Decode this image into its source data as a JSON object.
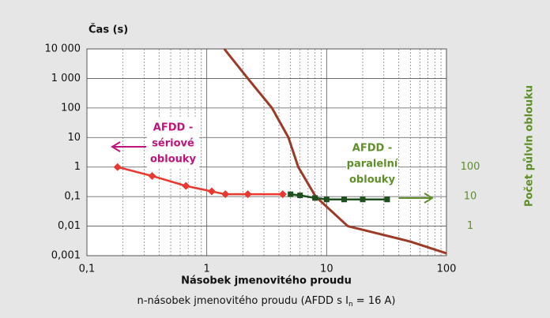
{
  "chart_data": {
    "type": "line",
    "y_title": "Čas (s)",
    "x_title": "Násobek jmenovitého proudu",
    "note": [
      "n-násobek jmenovitého proudu (AFDD s I",
      "n",
      " = 16 A)"
    ],
    "y2_title": "Počet půlvln oblouku",
    "annotations": [
      {
        "lines": [
          "AFDD -",
          "sériové",
          "oblouky"
        ],
        "color": "#c0137a"
      },
      {
        "lines": [
          "AFDD -",
          "paralelní",
          "oblouky"
        ],
        "color": "#5e8f2a"
      }
    ],
    "log_x": true,
    "log_y": true,
    "grid": true,
    "xlim": [
      0.1,
      100
    ],
    "xticks": [
      {
        "value": 0.1,
        "label": "0,1"
      },
      1,
      10,
      100
    ],
    "ylim": [
      0.001,
      10000
    ],
    "yticks": [
      {
        "value": 10000,
        "label": "10 000"
      },
      {
        "value": 1000,
        "label": "1 000"
      },
      100,
      10,
      1,
      {
        "value": 0.1,
        "label": "0,1"
      },
      {
        "value": 0.01,
        "label": "0,01"
      },
      {
        "value": 0.001,
        "label": "0,001"
      }
    ],
    "y2lim": [
      0.1,
      1000000
    ],
    "y2ticks": [
      100,
      10,
      1
    ],
    "series": [
      {
        "color": "#9b3a26",
        "marker": "none",
        "x": [
          1.4,
          2.2,
          3.5,
          4.8,
          5.8,
          8.1,
          15,
          50,
          100
        ],
        "values": [
          10000,
          1000,
          100,
          10,
          1,
          0.1,
          0.01,
          0.003,
          0.0012
        ]
      },
      {
        "color": "#e8382f",
        "marker": "diamond",
        "x": [
          0.18,
          0.35,
          0.67,
          1.1,
          1.43,
          2.2,
          4.3
        ],
        "values": [
          1,
          0.5,
          0.23,
          0.15,
          0.12,
          0.12,
          0.12
        ]
      },
      {
        "color": "#1f4f1f",
        "marker": "square",
        "axis": "y2",
        "x": [
          5,
          6,
          8,
          10,
          14,
          20,
          32
        ],
        "values": [
          12,
          11,
          9,
          8,
          8,
          8,
          8
        ]
      }
    ]
  }
}
